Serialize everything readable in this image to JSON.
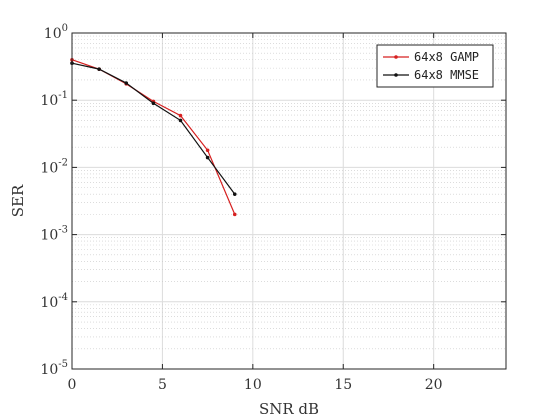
{
  "chart_data": {
    "type": "line",
    "xlabel": "SNR dB",
    "ylabel": "SER",
    "xlim": [
      0,
      24
    ],
    "ylim": [
      1e-05,
      1
    ],
    "y_scale": "log",
    "grid": true,
    "minor_grid": true,
    "x_ticks": [
      0,
      5,
      10,
      15,
      20
    ],
    "x_tick_labels": [
      "0",
      "5",
      "10",
      "15",
      "20"
    ],
    "y_ticks": [
      {
        "value": 1,
        "base": "10",
        "exp": "0"
      },
      {
        "value": 0.1,
        "base": "10",
        "exp": "-1"
      },
      {
        "value": 0.01,
        "base": "10",
        "exp": "-2"
      },
      {
        "value": 0.001,
        "base": "10",
        "exp": "-3"
      },
      {
        "value": 0.0001,
        "base": "10",
        "exp": "-4"
      },
      {
        "value": 1e-05,
        "base": "10",
        "exp": "-5"
      }
    ],
    "legend_position": "top-right",
    "series": [
      {
        "name": "64x8 GAMP",
        "color": "#d62020",
        "x": [
          0,
          1.5,
          3,
          4.5,
          6,
          7.5,
          9
        ],
        "y": [
          0.4,
          0.29,
          0.175,
          0.096,
          0.059,
          0.018,
          0.002
        ]
      },
      {
        "name": "64x8 MMSE",
        "color": "#111111",
        "x": [
          0,
          1.5,
          3,
          4.5,
          6,
          7.5,
          9
        ],
        "y": [
          0.355,
          0.29,
          0.18,
          0.09,
          0.05,
          0.014,
          0.004
        ]
      }
    ]
  }
}
